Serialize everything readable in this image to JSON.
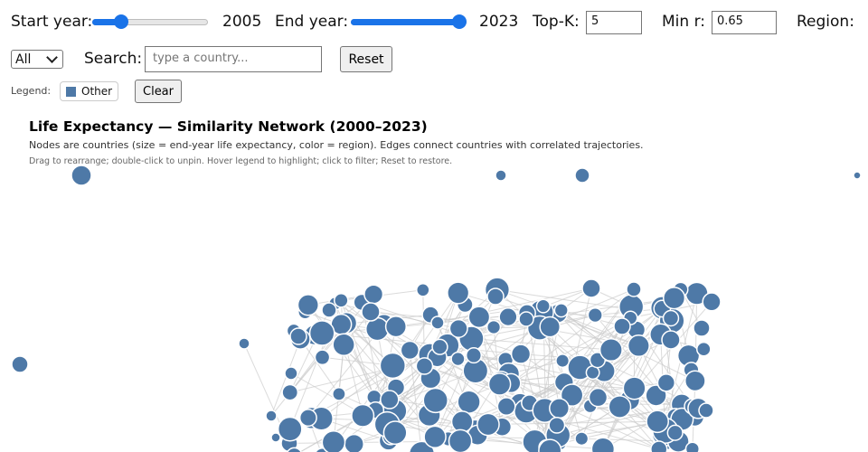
{
  "controls": {
    "start_year_label": "Start year:",
    "start_year_value": "2005",
    "start_year_slider": {
      "min": 2000,
      "max": 2023,
      "value": 2005
    },
    "end_year_label": "End year:",
    "end_year_value": "2023",
    "end_year_slider": {
      "min": 2000,
      "max": 2023,
      "value": 2023
    },
    "topk_label": "Top-K:",
    "topk_value": "5",
    "minr_label": "Min r:",
    "minr_value": "0.65",
    "region_label": "Region:",
    "region_selected": "All",
    "search_label": "Search:",
    "search_placeholder": "type a country...",
    "reset_label": "Reset"
  },
  "legend": {
    "label": "Legend:",
    "items": [
      {
        "name": "Other",
        "color": "#4e79a7"
      }
    ],
    "clear_label": "Clear"
  },
  "chart": {
    "title": "Life Expectancy — Similarity Network (2000–2023)",
    "subtitle": "Nodes are countries (size = end-year life expectancy, color = region). Edges connect countries with correlated trajectories.",
    "hint": "Drag to rearrange; double-click to unpin. Hover legend to highlight; click to filter; Reset to restore.",
    "node_color": "#4e79a7",
    "edge_color": "#cccccc"
  }
}
